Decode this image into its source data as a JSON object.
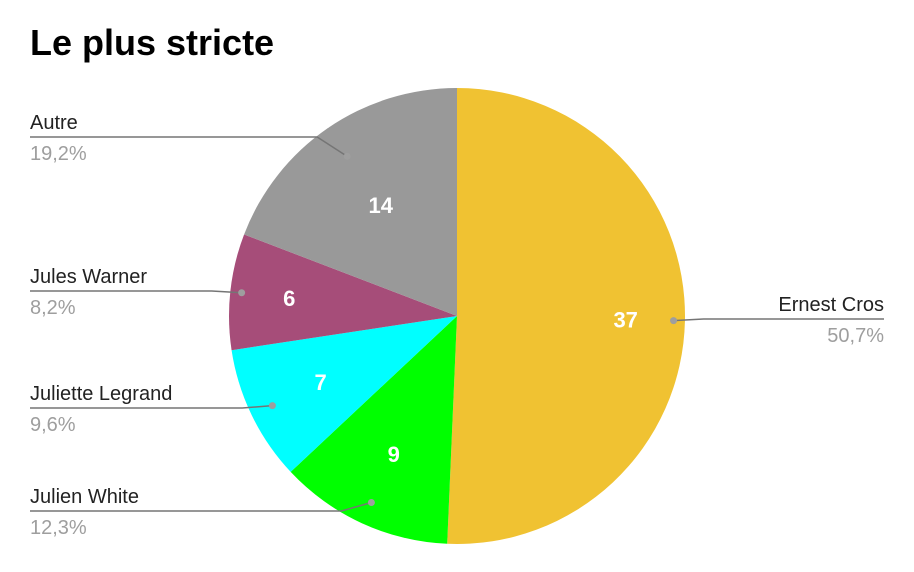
{
  "chart_data": {
    "type": "pie",
    "title": "Le plus stricte",
    "slices": [
      {
        "label": "Ernest Cros",
        "value": 37,
        "percent": "50,7%",
        "color": "#f0c232"
      },
      {
        "label": "Julien White",
        "value": 9,
        "percent": "12,3%",
        "color": "#00ff00"
      },
      {
        "label": "Juliette Legrand",
        "value": 7,
        "percent": "9,6%",
        "color": "#00ffff"
      },
      {
        "label": "Jules Warner",
        "value": 6,
        "percent": "8,2%",
        "color": "#a64d79"
      },
      {
        "label": "Autre",
        "value": 14,
        "percent": "19,2%",
        "color": "#999999"
      }
    ],
    "start_angle_deg": 0,
    "direction": "clockwise",
    "legend": "callout-labels"
  }
}
